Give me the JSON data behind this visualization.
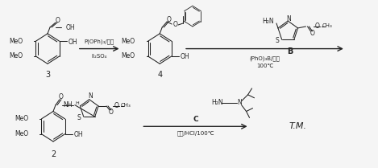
{
  "bg_color": "#f5f5f5",
  "fig_width": 4.69,
  "fig_height": 2.09,
  "dpi": 100,
  "font_size": 6.0,
  "line_color": "#222222",
  "arrow1_label_top": "P(OPh)₃/甲苯",
  "arrow1_label_bot": "II₂SO₄",
  "arrow2_label_bot": "(PhO)₃B/甲苯",
  "arrow2_label_bot2": "100℃",
  "amine_line1": "H₂N",
  "amine_struct": "H₂N      N",
  "arrow3_label_C": "C",
  "arrow3_label_bot": "甲苯/HCl/100℃",
  "label3": "3",
  "label4": "4",
  "label2": "2",
  "labelB": "B",
  "labelTM": "T.M."
}
